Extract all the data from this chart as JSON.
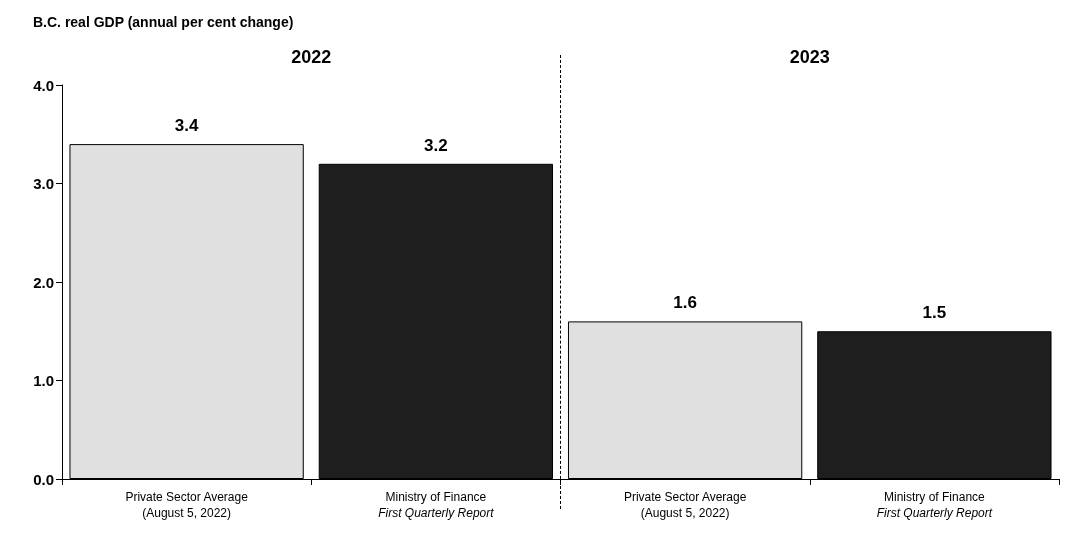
{
  "chart_data": {
    "type": "bar",
    "title": "B.C. real GDP (annual per cent change)",
    "categories": [
      "Private Sector Average\n(August 5, 2022)",
      "Ministry of Finance\nFirst Quarterly Report",
      "Private Sector Average\n(August 5, 2022)",
      "Ministry of Finance\nFirst Quarterly Report"
    ],
    "values": [
      3.4,
      3.2,
      1.6,
      1.5
    ],
    "colors": [
      "#e0e0e0",
      "#1e1e1e",
      "#e0e0e0",
      "#1e1e1e"
    ],
    "ylim": [
      0,
      4
    ],
    "yticks": [
      {
        "value": 0,
        "label": "0.0"
      },
      {
        "value": 1,
        "label": "1.0"
      },
      {
        "value": 2,
        "label": "2.0"
      },
      {
        "value": 3,
        "label": "3.0"
      },
      {
        "value": 4,
        "label": "4.0"
      }
    ],
    "annotations": [
      "2022",
      "2023"
    ],
    "data_labels": true,
    "grid": false
  }
}
